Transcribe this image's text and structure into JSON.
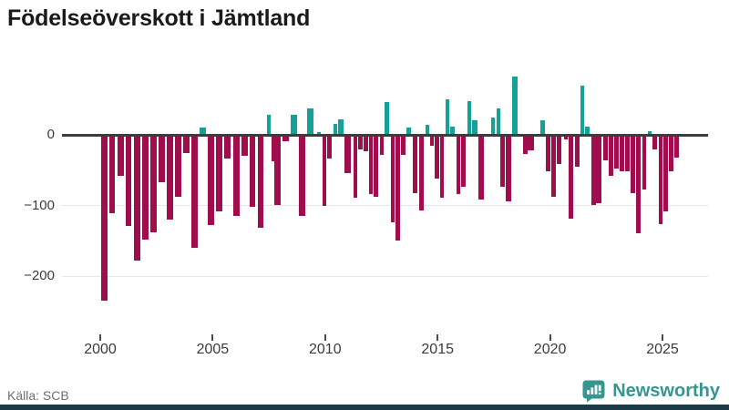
{
  "title": "Födelseöverskott i Jämtland",
  "source": {
    "label": "Källa: SCB"
  },
  "brand": {
    "name": "Newsworthy",
    "icon": "newsworthy-speech-bubble-chart-icon",
    "color": "#35968f"
  },
  "colors": {
    "positive": "#16a198",
    "negative": "#a00d4d",
    "axis": "#3d3d3d",
    "grid": "#e7e7e7",
    "tick_label": "#3b3b3b",
    "source_text": "#6f6f6f",
    "bottom_strip": "#1c3a47"
  },
  "chart_data": {
    "type": "bar",
    "title": "Födelseöverskott i Jämtland",
    "xlabel": "",
    "ylabel": "",
    "x_ticks": [
      2000,
      2005,
      2010,
      2015,
      2020,
      2025
    ],
    "y_ticks": [
      0,
      -100,
      -200
    ],
    "xlim": [
      1998.3,
      2027.0
    ],
    "ylim": [
      -260,
      100
    ],
    "grid": "horizontal",
    "legend": "none",
    "series_note": "Birth surplus per period, teal = positive, maroon = negative",
    "points": [
      [
        2000.17,
        -234
      ],
      [
        2000.53,
        -111
      ],
      [
        2000.9,
        -58
      ],
      [
        2001.26,
        -129
      ],
      [
        2001.63,
        -177
      ],
      [
        2002.0,
        -148
      ],
      [
        2002.38,
        -138
      ],
      [
        2002.74,
        -67
      ],
      [
        2003.11,
        -120
      ],
      [
        2003.47,
        -88
      ],
      [
        2003.84,
        -26
      ],
      [
        2004.2,
        -160
      ],
      [
        2004.57,
        10
      ],
      [
        2004.93,
        -128
      ],
      [
        2005.3,
        -108
      ],
      [
        2005.66,
        -34
      ],
      [
        2006.05,
        -115
      ],
      [
        2006.41,
        -30
      ],
      [
        2006.77,
        -102
      ],
      [
        2007.14,
        -131
      ],
      [
        2007.48,
        28
      ],
      [
        2007.69,
        -37
      ],
      [
        2007.89,
        -99
      ],
      [
        2008.25,
        -9
      ],
      [
        2008.62,
        28
      ],
      [
        2008.98,
        -115
      ],
      [
        2009.35,
        37
      ],
      [
        2009.73,
        4
      ],
      [
        2009.96,
        -101
      ],
      [
        2010.18,
        -33
      ],
      [
        2010.45,
        15
      ],
      [
        2010.7,
        22
      ],
      [
        2010.99,
        -54
      ],
      [
        2011.35,
        -89
      ],
      [
        2011.57,
        -20
      ],
      [
        2011.81,
        -23
      ],
      [
        2012.04,
        -84
      ],
      [
        2012.27,
        -87
      ],
      [
        2012.52,
        -28
      ],
      [
        2012.74,
        46
      ],
      [
        2013.0,
        -123
      ],
      [
        2013.22,
        -149
      ],
      [
        2013.46,
        -28
      ],
      [
        2013.72,
        10
      ],
      [
        2014.0,
        -82
      ],
      [
        2014.27,
        -107
      ],
      [
        2014.55,
        14
      ],
      [
        2014.76,
        -15
      ],
      [
        2014.97,
        -62
      ],
      [
        2015.19,
        -89
      ],
      [
        2015.43,
        50
      ],
      [
        2015.65,
        12
      ],
      [
        2015.93,
        -84
      ],
      [
        2016.16,
        -73
      ],
      [
        2016.41,
        48
      ],
      [
        2016.65,
        20
      ],
      [
        2016.94,
        -92
      ],
      [
        2017.46,
        25
      ],
      [
        2017.7,
        37
      ],
      [
        2017.9,
        -74
      ],
      [
        2018.15,
        -94
      ],
      [
        2018.44,
        82
      ],
      [
        2018.9,
        -27
      ],
      [
        2019.14,
        -22
      ],
      [
        2019.67,
        21
      ],
      [
        2019.91,
        -52
      ],
      [
        2020.16,
        -87
      ],
      [
        2020.4,
        -41
      ],
      [
        2020.7,
        -7
      ],
      [
        2020.94,
        -119
      ],
      [
        2021.21,
        -45
      ],
      [
        2021.44,
        69
      ],
      [
        2021.67,
        11
      ],
      [
        2021.94,
        -99
      ],
      [
        2022.17,
        -97
      ],
      [
        2022.47,
        -36
      ],
      [
        2022.71,
        -58
      ],
      [
        2022.95,
        -47
      ],
      [
        2023.2,
        -52
      ],
      [
        2023.44,
        -51
      ],
      [
        2023.68,
        -82
      ],
      [
        2023.93,
        -139
      ],
      [
        2024.2,
        -77
      ],
      [
        2024.43,
        5
      ],
      [
        2024.66,
        -20
      ],
      [
        2024.93,
        -126
      ],
      [
        2025.14,
        -108
      ],
      [
        2025.39,
        -52
      ],
      [
        2025.63,
        -32
      ]
    ]
  }
}
